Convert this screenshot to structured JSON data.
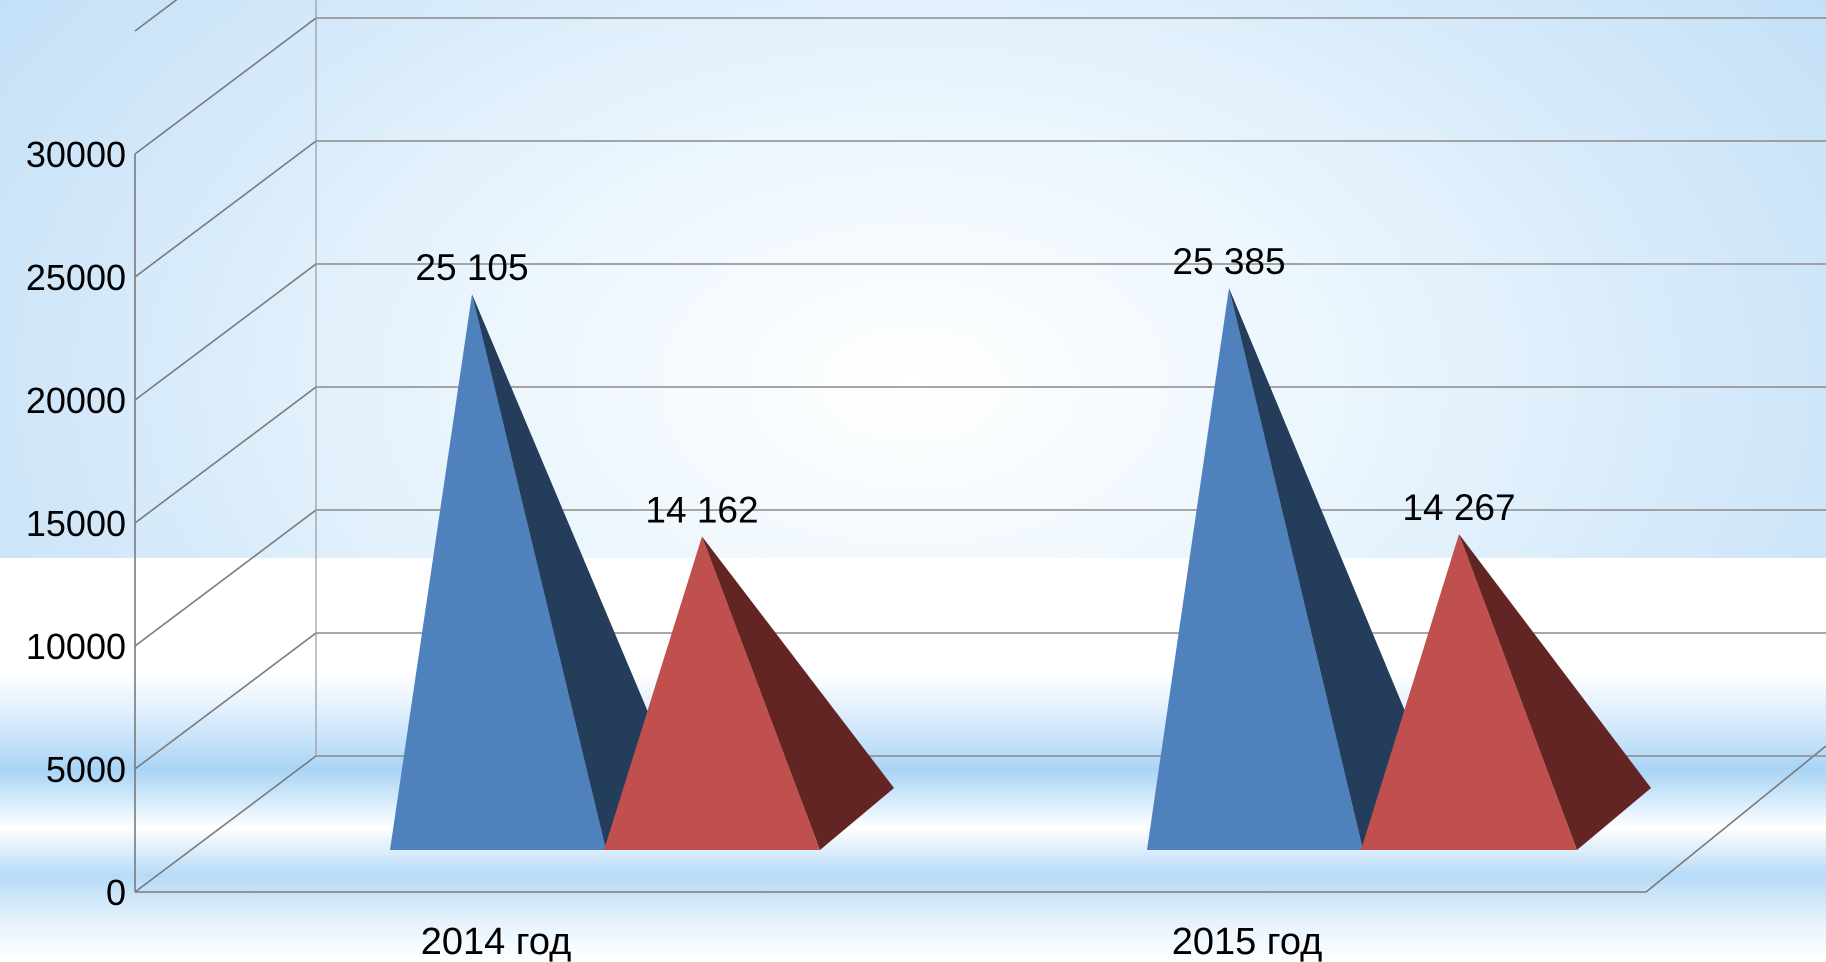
{
  "chart_data": {
    "type": "bar",
    "style": "3d-pyramid",
    "categories": [
      "2014 год",
      "2015 год"
    ],
    "series": [
      {
        "values": [
          25105,
          25385
        ],
        "labels": [
          "25 105",
          "25 385"
        ],
        "color": "#4f81bd",
        "shade": "#243d5a"
      },
      {
        "values": [
          14162,
          14267
        ],
        "labels": [
          "14 162",
          "14 267"
        ],
        "color": "#c0504d",
        "shade": "#632524"
      }
    ],
    "yticks": [
      "0",
      "5000",
      "10000",
      "15000",
      "20000",
      "25000",
      "30000"
    ],
    "ylim": [
      0,
      30000
    ],
    "grid": true,
    "legend": "none"
  }
}
